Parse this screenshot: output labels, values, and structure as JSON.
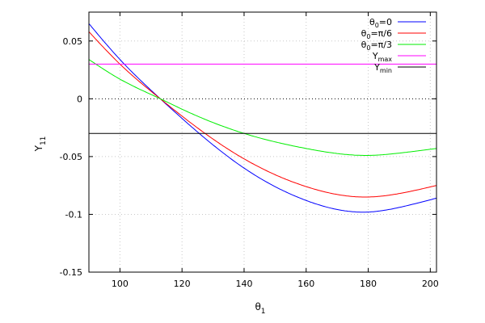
{
  "chart_data": {
    "type": "line",
    "xlabel": {
      "base": "θ",
      "sub": "1"
    },
    "ylabel": {
      "base": "Y",
      "sub": "11"
    },
    "xlim": [
      90,
      202
    ],
    "ylim": [
      -0.15,
      0.075
    ],
    "xticks": [
      100,
      120,
      140,
      160,
      180,
      200
    ],
    "xtick_labels": [
      "100",
      "120",
      "140",
      "160",
      "180",
      "200"
    ],
    "yticks": [
      0.05,
      0,
      -0.05,
      -0.1,
      -0.15
    ],
    "ytick_labels": [
      "0.05",
      "0",
      "-0.05",
      "-0.1",
      "-0.15"
    ],
    "grid": true,
    "zero_line": true,
    "legend_position": "top-right",
    "series": [
      {
        "name": "θ0=0",
        "label_base": "θ",
        "label_sub": "0",
        "label_rest": "=0",
        "color": "#0000ff",
        "x": [
          90,
          100,
          113,
          120,
          140,
          160,
          180,
          190,
          202
        ],
        "y": [
          0.065,
          0.034,
          0.0,
          -0.017,
          -0.06,
          -0.088,
          -0.098,
          -0.094,
          -0.086
        ]
      },
      {
        "name": "θ0=π/6",
        "label_base": "θ",
        "label_sub": "0",
        "label_rest": "=π/6",
        "color": "#ff0000",
        "x": [
          90,
          100,
          113,
          120,
          140,
          160,
          180,
          190,
          202
        ],
        "y": [
          0.058,
          0.03,
          0.0,
          -0.015,
          -0.052,
          -0.076,
          -0.085,
          -0.082,
          -0.075
        ]
      },
      {
        "name": "θ0=π/3",
        "label_base": "θ",
        "label_sub": "0",
        "label_rest": "=π/3",
        "color": "#00ee00",
        "x": [
          90,
          100,
          113,
          120,
          140,
          160,
          180,
          190,
          202
        ],
        "y": [
          0.034,
          0.017,
          0.0,
          -0.009,
          -0.03,
          -0.043,
          -0.049,
          -0.047,
          -0.043
        ]
      },
      {
        "name": "Ymax",
        "label_base": "Y",
        "label_sub": "max",
        "label_rest": "",
        "color": "#ff00ff",
        "x": [
          90,
          202
        ],
        "y": [
          0.03,
          0.03
        ]
      },
      {
        "name": "Ymin",
        "label_base": "Y",
        "label_sub": "min",
        "label_rest": "",
        "color": "#000000",
        "x": [
          90,
          202
        ],
        "y": [
          -0.03,
          -0.03
        ]
      }
    ]
  }
}
